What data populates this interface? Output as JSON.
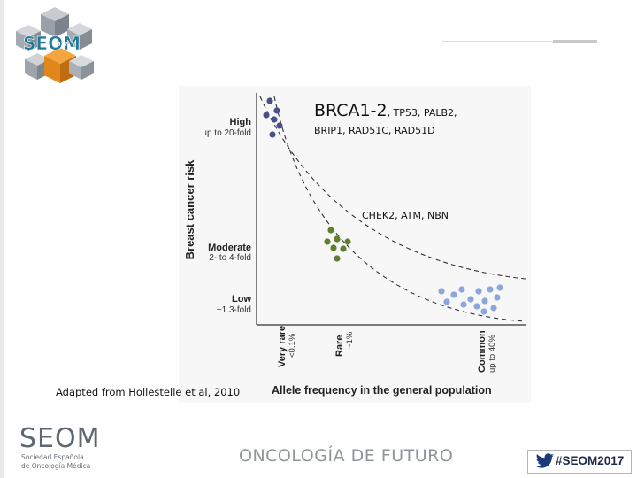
{
  "branding": {
    "logo_text": "SEOM",
    "logo_year": "2017",
    "footer_name": "SEOM",
    "footer_sub_line1": "Sociedad Española",
    "footer_sub_line2": "de Oncología Médica",
    "slogan": "ONCOLOGÍA DE FUTURO",
    "hashtag": "#SEOM2017",
    "colors": {
      "logo_orange": "#e88a1a",
      "logo_grey": "#8a9099",
      "twitter_blue": "#1b3a7a"
    }
  },
  "annotations": {
    "high_genes_big": "BRCA1-2",
    "high_genes_small": ", TP53, PALB2,",
    "high_genes_line2": "BRIP1, RAD51C, RAD51D",
    "moderate_genes": "CHEK2, ATM, NBN"
  },
  "caption": "Adapted from Hollestelle et al, 2010",
  "figure": {
    "y_title": "Breast cancer risk",
    "x_title": "Allele frequency in the general population",
    "y_levels": [
      {
        "name": "High",
        "detail": "up to 20-fold"
      },
      {
        "name": "Moderate",
        "detail": "2- to 4-fold"
      },
      {
        "name": "Low",
        "detail": "~1.3-fold"
      }
    ],
    "x_levels": [
      {
        "name": "Very rare",
        "detail": "<0.1%"
      },
      {
        "name": "Rare",
        "detail": "~1%"
      },
      {
        "name": "Common",
        "detail": "up to 40%"
      }
    ],
    "groups": [
      {
        "name": "high-risk variants",
        "color": "#4a4f8c",
        "count": 6
      },
      {
        "name": "moderate-risk variants",
        "color": "#5e7f2e",
        "count": 7
      },
      {
        "name": "low-risk variants",
        "color": "#8aa6dc",
        "count": 14
      }
    ]
  }
}
